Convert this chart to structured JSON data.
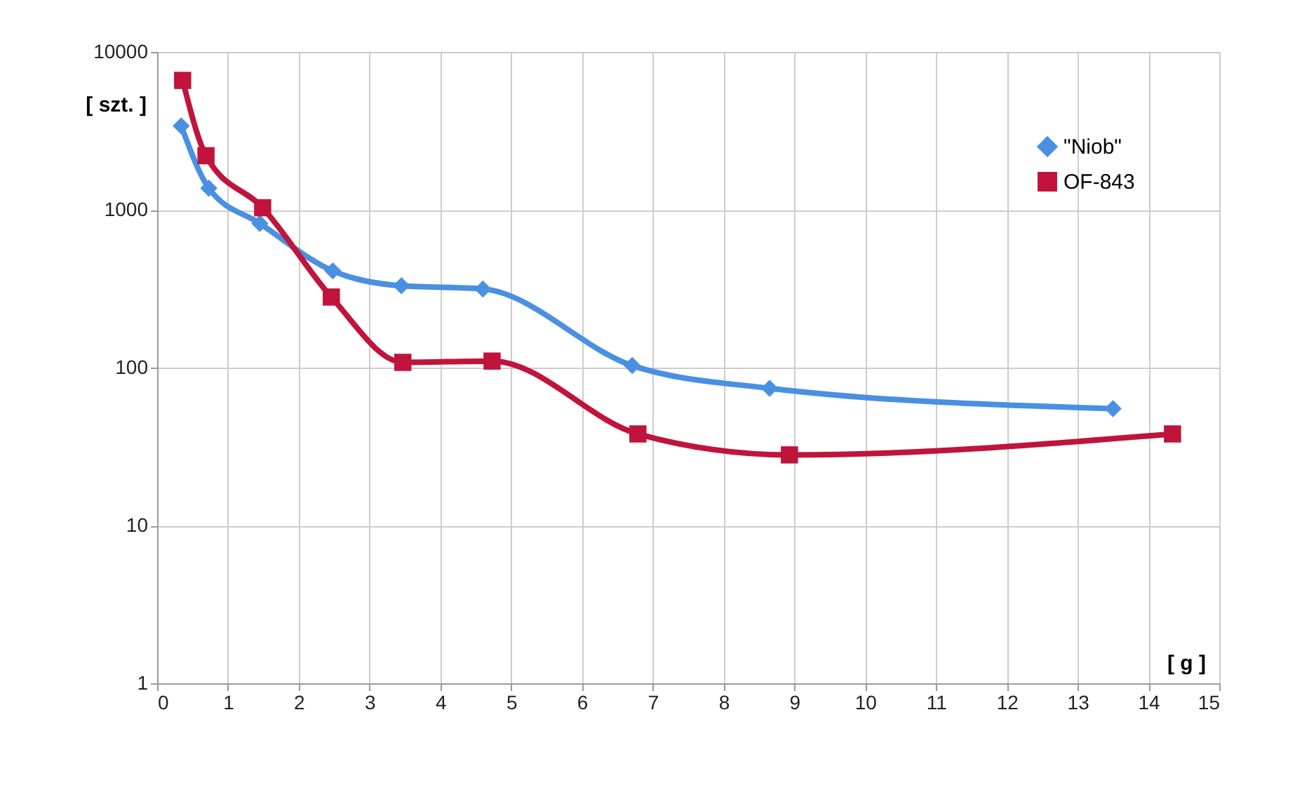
{
  "chart_data": {
    "type": "line",
    "xlabel": "[ g ]",
    "ylabel": "[ szt. ]",
    "log": "y",
    "xlim": [
      0,
      15
    ],
    "xticks": [
      0,
      1,
      2,
      3,
      4,
      5,
      6,
      7,
      8,
      9,
      10,
      11,
      12,
      13,
      14,
      15
    ],
    "ylim": [
      1,
      10000
    ],
    "yticks": [
      1,
      10,
      100,
      1000,
      10000
    ],
    "grid": true,
    "legend": "top right",
    "line_style": "solid",
    "series": [
      {
        "name": "\"Niob\"",
        "color": "#4a90e2",
        "marker": "diamond",
        "x": [
          0.34,
          0.73,
          1.45,
          2.48,
          3.45,
          4.6,
          6.71,
          8.65,
          13.5
        ],
        "values": [
          3400,
          1370,
          820,
          410,
          330,
          315,
          103,
          74,
          55
        ]
      },
      {
        "name": "OF-843",
        "color": "#c0143c",
        "marker": "square",
        "x": [
          0.36,
          0.69,
          1.49,
          2.46,
          3.47,
          4.73,
          6.79,
          8.93,
          14.34
        ],
        "values": [
          6600,
          2200,
          1030,
          280,
          108,
          110,
          38,
          28,
          38
        ]
      }
    ]
  }
}
